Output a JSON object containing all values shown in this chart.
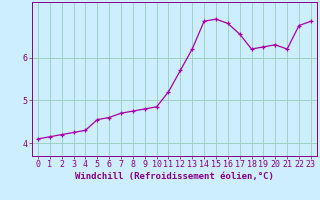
{
  "x": [
    0,
    1,
    2,
    3,
    4,
    5,
    6,
    7,
    8,
    9,
    10,
    11,
    12,
    13,
    14,
    15,
    16,
    17,
    18,
    19,
    20,
    21,
    22,
    23
  ],
  "y": [
    4.1,
    4.15,
    4.2,
    4.25,
    4.3,
    4.55,
    4.6,
    4.7,
    4.75,
    4.8,
    4.85,
    5.2,
    5.7,
    6.2,
    6.85,
    6.9,
    6.8,
    6.55,
    6.2,
    6.25,
    6.3,
    6.2,
    6.75,
    6.85
  ],
  "line_color": "#aa00aa",
  "marker": "+",
  "marker_size": 3,
  "bg_color": "#cceeff",
  "grid_color": "#99ccbb",
  "xlabel": "Windchill (Refroidissement éolien,°C)",
  "ylabel": "",
  "title": "",
  "ylim": [
    3.7,
    7.3
  ],
  "xlim": [
    -0.5,
    23.5
  ],
  "yticks": [
    4,
    5,
    6
  ],
  "ytick_labels": [
    "4",
    "5",
    "6"
  ],
  "xticks": [
    0,
    1,
    2,
    3,
    4,
    5,
    6,
    7,
    8,
    9,
    10,
    11,
    12,
    13,
    14,
    15,
    16,
    17,
    18,
    19,
    20,
    21,
    22,
    23
  ],
  "xlabel_fontsize": 6.5,
  "tick_fontsize": 6,
  "xlabel_color": "#880088",
  "tick_color": "#880088",
  "spine_color": "#880088",
  "line_width": 0.9,
  "marker_edge_width": 0.9
}
